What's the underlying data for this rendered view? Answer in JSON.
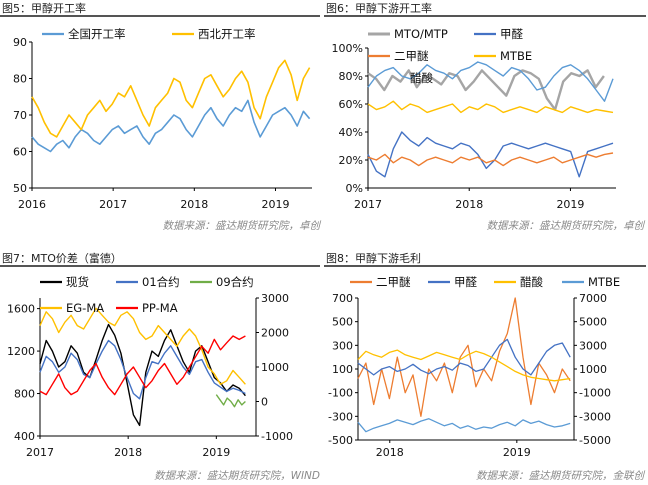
{
  "panels": [
    {
      "title": "图5：甲醇开工率",
      "source": "数据来源：盛达期货研究院，卓创",
      "chart_data": {
        "type": "line",
        "x_ticks": [
          "2016",
          "2017",
          "2018",
          "2019"
        ],
        "x_range": [
          2016.0,
          2019.45
        ],
        "y_left_ticks": [
          "50",
          "60",
          "70",
          "80",
          "90"
        ],
        "ylim_left": [
          50,
          90
        ],
        "legend_placement": "top",
        "series": [
          {
            "name": "全国开工率",
            "color": "#5B9BD5",
            "axis": "left",
            "x_start": 2016.0,
            "x_end": 2019.42,
            "values": [
              64,
              62,
              61,
              60,
              62,
              63,
              61,
              64,
              66,
              65,
              63,
              62,
              64,
              66,
              67,
              65,
              66,
              67,
              64,
              62,
              65,
              66,
              68,
              70,
              69,
              66,
              64,
              67,
              70,
              72,
              69,
              67,
              70,
              72,
              71,
              74,
              68,
              64,
              67,
              70,
              71,
              72,
              70,
              67,
              71,
              69
            ]
          },
          {
            "name": "西北开工率",
            "color": "#FFC000",
            "axis": "left",
            "x_start": 2016.0,
            "x_end": 2019.42,
            "values": [
              75,
              72,
              68,
              65,
              64,
              67,
              70,
              68,
              66,
              70,
              72,
              74,
              71,
              73,
              76,
              75,
              78,
              74,
              70,
              67,
              72,
              74,
              76,
              80,
              79,
              74,
              72,
              76,
              80,
              81,
              78,
              75,
              77,
              80,
              82,
              79,
              72,
              69,
              75,
              79,
              83,
              85,
              81,
              74,
              80,
              83
            ]
          }
        ]
      }
    },
    {
      "title": "图6：甲醇下游开工率",
      "source": "数据来源：盛达期货研究院，卓创",
      "chart_data": {
        "type": "line",
        "x_ticks": [
          "2017",
          "2018",
          "2019"
        ],
        "x_range": [
          2017.0,
          2019.45
        ],
        "y_left_ticks": [
          "0%",
          "20%",
          "40%",
          "60%",
          "80%",
          "100%"
        ],
        "ylim_left": [
          0,
          100
        ],
        "legend_placement": "top",
        "series": [
          {
            "name": "MTO/MTP",
            "color": "#A5A5A5",
            "axis": "left",
            "x_start": 2017.0,
            "x_end": 2019.33,
            "values": [
              82,
              78,
              70,
              80,
              76,
              84,
              72,
              80,
              78,
              74,
              82,
              80,
              70,
              76,
              84,
              78,
              72,
              66,
              80,
              84,
              82,
              78,
              64,
              56,
              76,
              82,
              80,
              84,
              72,
              80
            ]
          },
          {
            "name": "甲醛",
            "color": "#4472C4",
            "axis": "left",
            "x_start": 2017.0,
            "x_end": 2019.42,
            "values": [
              24,
              12,
              8,
              28,
              40,
              34,
              30,
              36,
              32,
              30,
              28,
              32,
              30,
              24,
              14,
              20,
              30,
              32,
              30,
              28,
              30,
              32,
              30,
              28,
              26,
              8,
              26,
              28,
              30,
              32
            ]
          },
          {
            "name": "二甲醚",
            "color": "#ED7D31",
            "axis": "left",
            "x_start": 2017.0,
            "x_end": 2019.42,
            "values": [
              22,
              20,
              24,
              18,
              22,
              20,
              16,
              20,
              22,
              20,
              18,
              22,
              20,
              22,
              18,
              20,
              16,
              20,
              22,
              20,
              18,
              20,
              22,
              18,
              20,
              22,
              24,
              22,
              24,
              25
            ]
          },
          {
            "name": "MTBE",
            "color": "#FFC000",
            "axis": "left",
            "x_start": 2017.0,
            "x_end": 2019.42,
            "values": [
              60,
              56,
              58,
              62,
              56,
              60,
              58,
              54,
              56,
              58,
              60,
              54,
              58,
              56,
              60,
              58,
              54,
              56,
              58,
              56,
              54,
              58,
              56,
              54,
              58,
              56,
              54,
              56,
              55,
              54
            ]
          },
          {
            "name": "醋酸",
            "color": "#5B9BD5",
            "axis": "left",
            "x_start": 2017.0,
            "x_end": 2019.42,
            "values": [
              72,
              80,
              84,
              86,
              80,
              78,
              82,
              88,
              84,
              82,
              78,
              84,
              86,
              90,
              88,
              84,
              80,
              86,
              84,
              78,
              70,
              72,
              80,
              86,
              88,
              84,
              78,
              70,
              62,
              78
            ]
          }
        ]
      }
    },
    {
      "title": "图7：MTO价差（富德）",
      "source": "数据来源：盛达期货研究院，WIND",
      "chart_data": {
        "type": "line",
        "x_ticks": [
          "2017",
          "2018",
          "2019"
        ],
        "x_range": [
          2017.0,
          2019.45
        ],
        "y_left_ticks": [
          "400",
          "800",
          "1200",
          "1600"
        ],
        "ylim_left": [
          400,
          1700
        ],
        "y_right_ticks": [
          "-1000",
          "0",
          "1000",
          "2000",
          "3000"
        ],
        "ylim_right": [
          -1000,
          3000
        ],
        "legend_placement": "top",
        "series": [
          {
            "name": "现货",
            "color": "#000000",
            "axis": "left",
            "x_start": 2017.0,
            "x_end": 2019.33,
            "values": [
              1080,
              1300,
              1200,
              1050,
              1100,
              1250,
              1180,
              1000,
              950,
              1120,
              1300,
              1450,
              1350,
              1180,
              900,
              600,
              500,
              1000,
              1200,
              1150,
              1300,
              1400,
              1250,
              1100,
              1000,
              1200,
              1250,
              1100,
              950,
              900,
              820,
              880,
              850,
              780
            ]
          },
          {
            "name": "01合约",
            "color": "#4472C4",
            "axis": "left",
            "x_start": 2017.0,
            "x_end": 2019.33,
            "values": [
              1000,
              1150,
              1100,
              1000,
              1050,
              1180,
              1120,
              980,
              950,
              1080,
              1200,
              1300,
              1250,
              1120,
              950,
              800,
              750,
              950,
              1100,
              1080,
              1180,
              1250,
              1150,
              1050,
              980,
              1100,
              1120,
              1000,
              900,
              860,
              820,
              850,
              830,
              800
            ]
          },
          {
            "name": "09合约",
            "color": "#70AD47",
            "axis": "right",
            "x_start": 2019.0,
            "x_end": 2019.33,
            "values": [
              200,
              50,
              -100,
              100,
              0,
              -150,
              50,
              -100,
              0
            ]
          },
          {
            "name": "EG-MA",
            "color": "#FFC000",
            "axis": "right",
            "x_start": 2017.0,
            "x_end": 2019.33,
            "values": [
              2200,
              2600,
              2400,
              2000,
              2300,
              2500,
              2200,
              2100,
              2400,
              2700,
              2500,
              2300,
              2200,
              2500,
              2600,
              2400,
              2000,
              1800,
              1900,
              2200,
              2000,
              1800,
              1600,
              1900,
              2100,
              1900,
              1500,
              1000,
              800,
              500,
              600,
              900,
              700,
              500
            ]
          },
          {
            "name": "PP-MA",
            "color": "#FF0000",
            "axis": "right",
            "x_start": 2017.0,
            "x_end": 2019.33,
            "values": [
              300,
              200,
              500,
              800,
              400,
              200,
              300,
              600,
              900,
              1100,
              700,
              400,
              200,
              500,
              800,
              1000,
              700,
              400,
              600,
              900,
              1100,
              800,
              500,
              700,
              1000,
              1300,
              1600,
              1400,
              1800,
              1500,
              1700,
              1900,
              1800,
              1900
            ]
          }
        ]
      }
    },
    {
      "title": "图8：甲醇下游毛利",
      "source": "数据来源：盛达期货研究院，金联创",
      "chart_data": {
        "type": "line",
        "x_ticks": [
          "2018",
          "2019"
        ],
        "x_range": [
          2017.75,
          2019.45
        ],
        "y_left_ticks": [
          "-500",
          "-300",
          "-100",
          "100",
          "300",
          "500",
          "700"
        ],
        "ylim_left": [
          -500,
          700
        ],
        "y_right_ticks": [
          "-5000",
          "-3000",
          "-1000",
          "1000",
          "3000",
          "5000",
          "7000"
        ],
        "ylim_right": [
          -5000,
          7000
        ],
        "legend_placement": "top",
        "series": [
          {
            "name": "二甲醚",
            "color": "#ED7D31",
            "axis": "left",
            "x_start": 2017.75,
            "x_end": 2019.42,
            "values": [
              20,
              150,
              -200,
              100,
              -150,
              200,
              -100,
              50,
              -300,
              100,
              0,
              150,
              -100,
              200,
              300,
              -50,
              100,
              0,
              250,
              400,
              700,
              200,
              -200,
              150,
              50,
              -100,
              100,
              0
            ]
          },
          {
            "name": "甲醛",
            "color": "#4472C4",
            "axis": "left",
            "x_start": 2017.75,
            "x_end": 2019.42,
            "values": [
              150,
              100,
              50,
              100,
              120,
              80,
              100,
              140,
              90,
              60,
              100,
              120,
              90,
              150,
              130,
              80,
              100,
              200,
              300,
              350,
              200,
              100,
              50,
              150,
              250,
              300,
              320,
              200
            ]
          },
          {
            "name": "醋酸",
            "color": "#FFC000",
            "axis": "right",
            "x_start": 2017.75,
            "x_end": 2019.42,
            "values": [
              1800,
              2500,
              2200,
              2000,
              2400,
              2600,
              2200,
              2000,
              1800,
              2100,
              2400,
              2200,
              2000,
              1800,
              2200,
              2500,
              2300,
              2000,
              1600,
              1200,
              800,
              500,
              300,
              200,
              100,
              0,
              100,
              200
            ]
          },
          {
            "name": "MTBE",
            "color": "#5B9BD5",
            "axis": "right",
            "x_start": 2017.75,
            "x_end": 2019.42,
            "values": [
              -3500,
              -4300,
              -4000,
              -3800,
              -3600,
              -3300,
              -3500,
              -3700,
              -3400,
              -3200,
              -3500,
              -3800,
              -3600,
              -4000,
              -3800,
              -4100,
              -3900,
              -4000,
              -3700,
              -3500,
              -3800,
              -3300,
              -3600,
              -3400,
              -3700,
              -3900,
              -3800,
              -3600
            ]
          }
        ]
      }
    }
  ]
}
